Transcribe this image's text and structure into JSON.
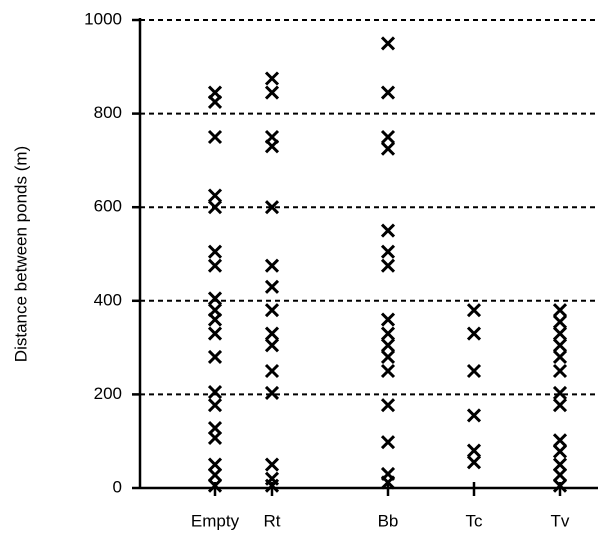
{
  "chart_data": {
    "type": "strip",
    "y_label": "Distance between ponds (m)",
    "categories": [
      "Empty",
      "Rt",
      "Bb",
      "Tc",
      "Tv"
    ],
    "values": [
      [
        845,
        825,
        750,
        625,
        600,
        505,
        475,
        405,
        380,
        360,
        330,
        280,
        205,
        177,
        128,
        107,
        50,
        28,
        5
      ],
      [
        875,
        845,
        750,
        730,
        600,
        475,
        430,
        380,
        330,
        305,
        250,
        203,
        50,
        20,
        5
      ],
      [
        950,
        845,
        750,
        725,
        550,
        505,
        475,
        360,
        330,
        305,
        280,
        250,
        177,
        98,
        30,
        12
      ],
      [
        380,
        330,
        250,
        155,
        80,
        55
      ],
      [
        380,
        355,
        330,
        305,
        280,
        250,
        203,
        177,
        102,
        78,
        50,
        28,
        5
      ]
    ],
    "color": "#000000",
    "marker": "x",
    "ylim": [
      0,
      1000
    ],
    "yticks": [
      0,
      200,
      400,
      600,
      800,
      1000
    ],
    "grid": true
  }
}
